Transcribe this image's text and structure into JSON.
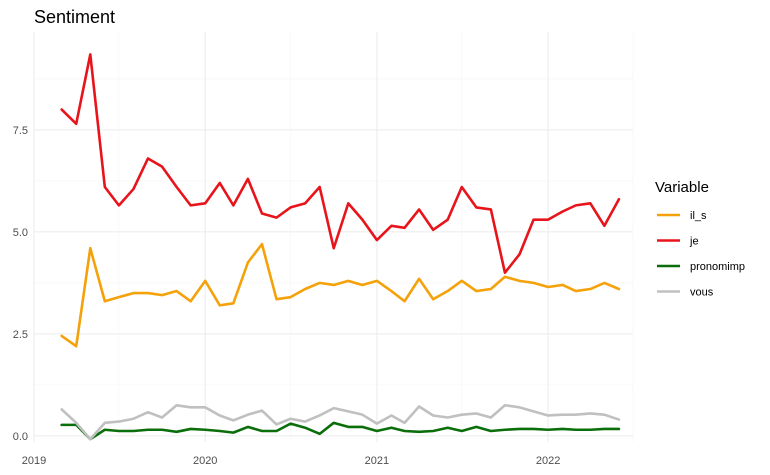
{
  "chart_data": {
    "type": "line",
    "title": "Sentiment",
    "xlabel": "",
    "ylabel": "",
    "x_ticks": [
      "2019",
      "2020",
      "2021",
      "2022"
    ],
    "y_ticks": [
      "0.0",
      "2.5",
      "5.0",
      "7.5"
    ],
    "xlim": [
      "2019-01-01",
      "2022-07-01"
    ],
    "ylim": [
      -0.15,
      9.9
    ],
    "grid": true,
    "legend": {
      "title": "Variable",
      "placement": "right"
    },
    "dates": [
      "2019-03-01",
      "2019-04-01",
      "2019-05-01",
      "2019-06-01",
      "2019-07-01",
      "2019-08-01",
      "2019-09-01",
      "2019-10-01",
      "2019-11-01",
      "2019-12-01",
      "2020-01-01",
      "2020-02-01",
      "2020-03-01",
      "2020-04-01",
      "2020-05-01",
      "2020-06-01",
      "2020-07-01",
      "2020-08-01",
      "2020-09-01",
      "2020-10-01",
      "2020-11-01",
      "2020-12-01",
      "2021-01-01",
      "2021-02-01",
      "2021-03-01",
      "2021-04-01",
      "2021-05-01",
      "2021-06-01",
      "2021-07-01",
      "2021-08-01",
      "2021-09-01",
      "2021-10-01",
      "2021-11-01",
      "2021-12-01",
      "2022-01-01",
      "2022-02-01",
      "2022-03-01",
      "2022-04-01",
      "2022-05-01",
      "2022-06-01"
    ],
    "series": [
      {
        "name": "il_s",
        "color": "#f5a10a",
        "values": [
          2.45,
          2.2,
          4.6,
          3.3,
          3.4,
          3.5,
          3.5,
          3.45,
          3.55,
          3.3,
          3.8,
          3.2,
          3.25,
          4.25,
          4.7,
          3.35,
          3.4,
          3.6,
          3.75,
          3.7,
          3.8,
          3.7,
          3.8,
          3.55,
          3.3,
          3.85,
          3.35,
          3.55,
          3.8,
          3.55,
          3.6,
          3.9,
          3.8,
          3.75,
          3.65,
          3.7,
          3.55,
          3.6,
          3.75,
          3.6
        ]
      },
      {
        "name": "je",
        "color": "#e8141b",
        "values": [
          8.0,
          7.65,
          9.35,
          6.1,
          5.65,
          6.05,
          6.8,
          6.6,
          6.1,
          5.65,
          5.7,
          6.2,
          5.65,
          6.3,
          5.45,
          5.35,
          5.6,
          5.7,
          6.1,
          4.6,
          5.7,
          5.3,
          4.8,
          5.15,
          5.1,
          5.55,
          5.05,
          5.3,
          6.1,
          5.6,
          5.55,
          4.0,
          4.45,
          5.3,
          5.3,
          5.5,
          5.65,
          5.7,
          5.15,
          5.8
        ]
      },
      {
        "name": "pronomimp",
        "color": "#0a6e0a",
        "values": [
          0.27,
          0.27,
          -0.08,
          0.15,
          0.12,
          0.12,
          0.15,
          0.15,
          0.1,
          0.17,
          0.15,
          0.12,
          0.08,
          0.22,
          0.12,
          0.12,
          0.3,
          0.2,
          0.05,
          0.32,
          0.22,
          0.22,
          0.12,
          0.2,
          0.12,
          0.1,
          0.12,
          0.2,
          0.12,
          0.22,
          0.12,
          0.15,
          0.17,
          0.17,
          0.15,
          0.17,
          0.15,
          0.15,
          0.17,
          0.17
        ]
      },
      {
        "name": "vous",
        "color": "#c0c0c0",
        "values": [
          0.65,
          0.32,
          -0.08,
          0.32,
          0.35,
          0.42,
          0.58,
          0.45,
          0.75,
          0.7,
          0.7,
          0.5,
          0.38,
          0.52,
          0.62,
          0.28,
          0.42,
          0.35,
          0.5,
          0.68,
          0.6,
          0.52,
          0.3,
          0.5,
          0.32,
          0.72,
          0.5,
          0.45,
          0.52,
          0.55,
          0.45,
          0.75,
          0.7,
          0.6,
          0.5,
          0.52,
          0.52,
          0.55,
          0.52,
          0.4
        ]
      }
    ]
  }
}
